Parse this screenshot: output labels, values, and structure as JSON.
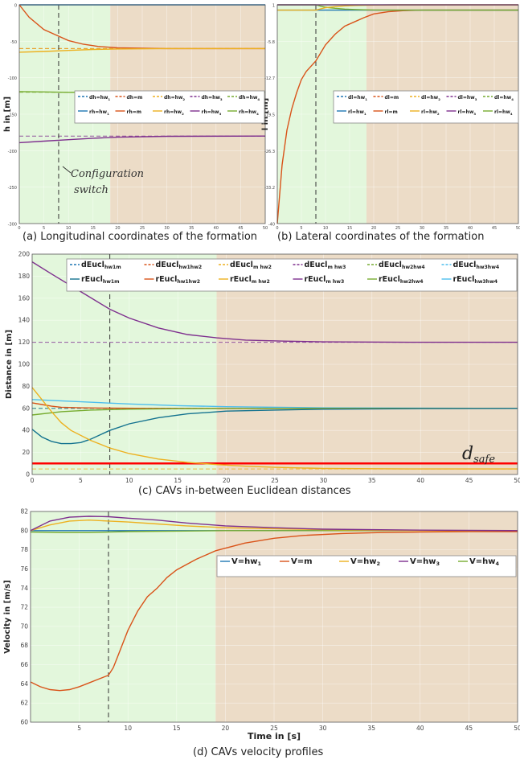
{
  "captions": {
    "a": "(a) Longitudinal coordinates of the formation",
    "b": "(b) Lateral coordinates of the formation",
    "c": "(c) CAVs in-between Euclidean distances",
    "d": "(d) CAVs velocity profiles"
  },
  "colors": {
    "phase1": "#e3f7dc",
    "phase2": "#ecdcc7",
    "hw1": "#1f77b4",
    "m": "#d95319",
    "hw2": "#edb120",
    "hw3": "#7e2f8e",
    "hw4": "#77ac30",
    "cyan": "#4dbeee",
    "teal": "#13728f",
    "safe": "#ff0000"
  },
  "chart_data": [
    {
      "id": "a",
      "type": "line",
      "title": "",
      "ylabel": "h in [m]",
      "xlabel": "",
      "xlim": [
        0,
        50
      ],
      "ylim": [
        -300,
        0
      ],
      "phase_boundaries": [
        8,
        18.5
      ],
      "annotation": [
        "Configuration",
        "switch"
      ],
      "legend": [
        {
          "name": "dh=hw",
          "sub": "1",
          "color": "#1f77b4",
          "dash": true
        },
        {
          "name": "dh=m",
          "sub": "",
          "color": "#d95319",
          "dash": true
        },
        {
          "name": "dh=hw",
          "sub": "2",
          "color": "#edb120",
          "dash": true
        },
        {
          "name": "dh=hw",
          "sub": "3",
          "color": "#7e2f8e",
          "dash": true
        },
        {
          "name": "dh=hw",
          "sub": "4",
          "color": "#77ac30",
          "dash": true
        },
        {
          "name": "rh=hw",
          "sub": "1",
          "color": "#1f77b4",
          "dash": false
        },
        {
          "name": "rh=m",
          "sub": "",
          "color": "#d95319",
          "dash": false
        },
        {
          "name": "rh=hw",
          "sub": "2",
          "color": "#edb120",
          "dash": false
        },
        {
          "name": "rh=hw",
          "sub": "3",
          "color": "#7e2f8e",
          "dash": false
        },
        {
          "name": "rh=hw",
          "sub": "4",
          "color": "#77ac30",
          "dash": false
        }
      ],
      "desired": [
        {
          "y": 0,
          "color": "#1f77b4"
        },
        {
          "y": -60,
          "color": "#d95319"
        },
        {
          "y": -60,
          "color": "#edb120"
        },
        {
          "y": -120,
          "color": "#77ac30"
        },
        {
          "y": -180,
          "color": "#7e2f8e"
        }
      ],
      "series": [
        {
          "color": "#1f77b4",
          "x": [
            0,
            50
          ],
          "y": [
            0,
            0
          ]
        },
        {
          "color": "#d95319",
          "x": [
            0,
            2,
            5,
            8,
            10,
            13,
            16,
            20,
            25,
            30,
            40,
            50
          ],
          "y": [
            0,
            -17,
            -34,
            -43,
            -49,
            -54,
            -57,
            -59,
            -59.6,
            -60,
            -60,
            -60
          ]
        },
        {
          "color": "#edb120",
          "x": [
            0,
            5,
            10,
            15,
            20,
            30,
            50
          ],
          "y": [
            -65,
            -64,
            -62.5,
            -61.2,
            -60.5,
            -60,
            -60
          ]
        },
        {
          "color": "#77ac30",
          "x": [
            0,
            5,
            10,
            20,
            50
          ],
          "y": [
            -119,
            -119.4,
            -120,
            -120,
            -120
          ]
        },
        {
          "color": "#7e2f8e",
          "x": [
            0,
            5,
            10,
            15,
            20,
            30,
            50
          ],
          "y": [
            -189,
            -187,
            -185,
            -183,
            -181.5,
            -180.3,
            -180
          ]
        }
      ]
    },
    {
      "id": "b",
      "type": "line",
      "title": "",
      "ylabel": "l in [m]",
      "xlabel": "",
      "xlim": [
        0,
        50
      ],
      "ylim": [
        -40,
        1
      ],
      "phase_boundaries": [
        8,
        18.5
      ],
      "legend": [
        {
          "name": "dl=hw",
          "sub": "1",
          "color": "#1f77b4",
          "dash": true
        },
        {
          "name": "dl=m",
          "sub": "",
          "color": "#d95319",
          "dash": true
        },
        {
          "name": "dl=hw",
          "sub": "2",
          "color": "#edb120",
          "dash": true
        },
        {
          "name": "dl=hw",
          "sub": "3",
          "color": "#7e2f8e",
          "dash": true
        },
        {
          "name": "dl=hw",
          "sub": "4",
          "color": "#77ac30",
          "dash": true
        },
        {
          "name": "rl=hw",
          "sub": "1",
          "color": "#1f77b4",
          "dash": false
        },
        {
          "name": "rl=m",
          "sub": "",
          "color": "#d95319",
          "dash": false
        },
        {
          "name": "rl=hw",
          "sub": "2",
          "color": "#edb120",
          "dash": false
        },
        {
          "name": "rl=hw",
          "sub": "3",
          "color": "#7e2f8e",
          "dash": false
        },
        {
          "name": "rl=hw",
          "sub": "4",
          "color": "#77ac30",
          "dash": false
        }
      ],
      "series": [
        {
          "color": "#d95319",
          "x": [
            0,
            1,
            2,
            3,
            4,
            5,
            6,
            8,
            10,
            12,
            14,
            16,
            18,
            20,
            23,
            26,
            30,
            50
          ],
          "y": [
            -40,
            -29,
            -22.5,
            -18.5,
            -15.5,
            -13,
            -11.5,
            -9.5,
            -6.5,
            -4.5,
            -3,
            -2.2,
            -1.4,
            -0.7,
            -0.3,
            -0.1,
            0,
            0
          ]
        },
        {
          "color": "#1f77b4",
          "x": [
            0,
            50
          ],
          "y": [
            0,
            0
          ]
        },
        {
          "color": "#77ac30",
          "x": [
            0,
            8,
            9,
            10,
            12,
            14,
            16,
            18,
            20,
            25,
            50
          ],
          "y": [
            1,
            1,
            0.75,
            0.55,
            0.35,
            0.2,
            0.12,
            0.07,
            0.04,
            0,
            0
          ]
        },
        {
          "color": "#edb120",
          "x": [
            0,
            8,
            9,
            10,
            12,
            14,
            16,
            18,
            20,
            25,
            50
          ],
          "y": [
            0,
            0,
            0.25,
            0.45,
            0.65,
            0.8,
            0.88,
            0.93,
            0.96,
            1,
            1
          ]
        },
        {
          "color": "#7e2f8e",
          "x": [
            0,
            50
          ],
          "y": [
            1,
            1
          ]
        }
      ]
    },
    {
      "id": "c",
      "type": "line",
      "title": "",
      "ylabel": "Distance in [m]",
      "xlabel": "",
      "xlim": [
        0,
        50
      ],
      "ylim": [
        0,
        200
      ],
      "yticks": [
        0,
        20,
        40,
        60,
        80,
        100,
        120,
        140,
        160,
        180,
        200
      ],
      "xticks": [
        0,
        5,
        10,
        15,
        20,
        25,
        30,
        35,
        40,
        45,
        50
      ],
      "phase_boundaries": [
        8,
        19
      ],
      "annotation": "d_safe",
      "legend": [
        {
          "name": "dEucl",
          "sub": "hw1m",
          "color": "#1f77b4",
          "dash": true
        },
        {
          "name": "dEucl",
          "sub": "hw1hw2",
          "color": "#d95319",
          "dash": true
        },
        {
          "name": "dEucl",
          "sub": "m hw2",
          "color": "#edb120",
          "dash": true
        },
        {
          "name": "dEucl",
          "sub": "m hw3",
          "color": "#7e2f8e",
          "dash": true
        },
        {
          "name": "dEucl",
          "sub": "hw2hw4",
          "color": "#77ac30",
          "dash": true
        },
        {
          "name": "dEucl",
          "sub": "hw3hw4",
          "color": "#4dbeee",
          "dash": true
        },
        {
          "name": "rEucl",
          "sub": "hw1m",
          "color": "#13728f",
          "dash": false
        },
        {
          "name": "rEucl",
          "sub": "hw1hw2",
          "color": "#d95319",
          "dash": false
        },
        {
          "name": "rEucl",
          "sub": "m hw2",
          "color": "#edb120",
          "dash": false
        },
        {
          "name": "rEucl",
          "sub": "m hw3",
          "color": "#7e2f8e",
          "dash": false
        },
        {
          "name": "rEucl",
          "sub": "hw2hw4",
          "color": "#77ac30",
          "dash": false
        },
        {
          "name": "rEucl",
          "sub": "hw3hw4",
          "color": "#4dbeee",
          "dash": false
        }
      ],
      "desired": [
        {
          "y": 120,
          "color": "#7e2f8e"
        },
        {
          "y": 60,
          "color": "#77ac30"
        },
        {
          "y": 60,
          "color": "#1f77b4"
        },
        {
          "y": 5,
          "color": "#edb120"
        }
      ],
      "safe_line": 10,
      "series": [
        {
          "color": "#7e2f8e",
          "x": [
            0,
            2,
            5,
            8,
            10,
            13,
            16,
            19,
            22,
            26,
            30,
            40,
            50
          ],
          "y": [
            193,
            182,
            166,
            150,
            142,
            133,
            127,
            124,
            122,
            121,
            120.4,
            120,
            120
          ]
        },
        {
          "color": "#4dbeee",
          "x": [
            0,
            5,
            10,
            15,
            20,
            30,
            50
          ],
          "y": [
            68,
            66,
            64,
            62.5,
            61.5,
            60.5,
            60
          ]
        },
        {
          "color": "#d95319",
          "x": [
            0,
            1,
            2,
            3,
            5,
            8,
            12,
            20,
            50
          ],
          "y": [
            65,
            63.5,
            62,
            61,
            60.5,
            60.2,
            60,
            60,
            60
          ]
        },
        {
          "color": "#77ac30",
          "x": [
            0,
            3,
            6,
            10,
            15,
            20,
            30,
            50
          ],
          "y": [
            54,
            57,
            58.5,
            59.3,
            59.7,
            59.9,
            60,
            60
          ]
        },
        {
          "color": "#13728f",
          "x": [
            0,
            1,
            2,
            3,
            4,
            5,
            6,
            8,
            10,
            13,
            16,
            20,
            25,
            30,
            40,
            50
          ],
          "y": [
            41,
            34,
            30,
            28,
            28,
            29,
            32,
            40,
            46,
            51.5,
            55,
            57.5,
            58.5,
            59.3,
            59.8,
            60
          ]
        },
        {
          "color": "#edb120",
          "x": [
            0,
            1,
            2,
            3,
            4,
            6,
            8,
            10,
            13,
            16,
            19,
            22,
            25,
            30,
            40,
            50
          ],
          "y": [
            79,
            68,
            57,
            47,
            40,
            31,
            24,
            19,
            14,
            11,
            9,
            7.5,
            6.5,
            5.5,
            5,
            5
          ]
        }
      ]
    },
    {
      "id": "d",
      "type": "line",
      "title": "",
      "ylabel": "Velocity in [m/s]",
      "xlabel": "Time in [s]",
      "xlim": [
        0,
        50
      ],
      "ylim": [
        60,
        82
      ],
      "yticks": [
        60,
        62,
        64,
        66,
        68,
        70,
        72,
        74,
        76,
        78,
        80,
        82
      ],
      "xticks": [
        5,
        10,
        15,
        20,
        25,
        30,
        35,
        40,
        45,
        50
      ],
      "phase_boundaries": [
        8,
        19
      ],
      "legend": [
        {
          "name": "V=hw",
          "sub": "1",
          "color": "#1f77b4",
          "dash": false
        },
        {
          "name": "V=m",
          "sub": "",
          "color": "#d95319",
          "dash": false
        },
        {
          "name": "V=hw",
          "sub": "2",
          "color": "#edb120",
          "dash": false
        },
        {
          "name": "V=hw",
          "sub": "3",
          "color": "#7e2f8e",
          "dash": false
        },
        {
          "name": "V=hw",
          "sub": "4",
          "color": "#77ac30",
          "dash": false
        }
      ],
      "series": [
        {
          "color": "#d95319",
          "x": [
            0,
            1,
            2,
            3,
            4,
            5,
            6,
            7,
            8,
            8.5,
            9,
            10,
            11,
            12,
            13,
            14,
            15,
            17,
            19,
            22,
            25,
            28,
            32,
            36,
            40,
            45,
            50
          ],
          "y": [
            64.2,
            63.7,
            63.4,
            63.3,
            63.4,
            63.7,
            64.1,
            64.5,
            64.9,
            65.7,
            67,
            69.6,
            71.6,
            73.1,
            74,
            75.1,
            75.9,
            77,
            77.9,
            78.7,
            79.2,
            79.5,
            79.7,
            79.8,
            79.85,
            79.9,
            79.9
          ]
        },
        {
          "color": "#1f77b4",
          "x": [
            0,
            50
          ],
          "y": [
            80,
            80
          ]
        },
        {
          "color": "#77ac30",
          "x": [
            0,
            3,
            6,
            8,
            10,
            15,
            20,
            30,
            50
          ],
          "y": [
            79.85,
            79.8,
            79.8,
            79.85,
            79.9,
            79.95,
            80,
            80,
            80
          ]
        },
        {
          "color": "#edb120",
          "x": [
            0,
            2,
            4,
            6,
            8,
            10,
            13,
            16,
            20,
            25,
            30,
            40,
            50
          ],
          "y": [
            80,
            80.6,
            81,
            81.1,
            81,
            80.9,
            80.7,
            80.5,
            80.3,
            80.2,
            80.1,
            80,
            80
          ]
        },
        {
          "color": "#7e2f8e",
          "x": [
            0,
            2,
            4,
            6,
            8,
            10,
            13,
            16,
            20,
            25,
            30,
            40,
            50
          ],
          "y": [
            80,
            81,
            81.4,
            81.5,
            81.45,
            81.3,
            81.1,
            80.8,
            80.5,
            80.3,
            80.15,
            80.05,
            80
          ]
        }
      ]
    }
  ]
}
